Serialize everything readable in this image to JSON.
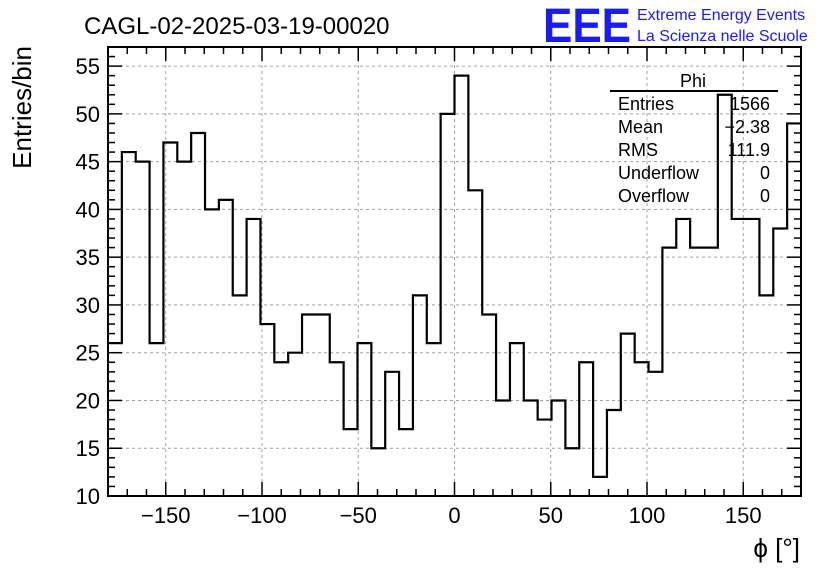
{
  "chart_data": {
    "type": "bar",
    "histogram": true,
    "title": "CAGL-02-2025-03-19-00020",
    "xlabel": "ϕ [°]",
    "ylabel": "Entries/bin",
    "xlim": [
      -180,
      180
    ],
    "ylim": [
      10,
      57
    ],
    "bin_width": 7.2,
    "x_ticks": [
      -150,
      -100,
      -50,
      0,
      50,
      100,
      150
    ],
    "x_tick_labels": [
      "−150",
      "−100",
      "−50",
      "0",
      "50",
      "100",
      "150"
    ],
    "y_ticks": [
      10,
      15,
      20,
      25,
      30,
      35,
      40,
      45,
      50,
      55
    ],
    "y_tick_labels": [
      "10",
      "15",
      "20",
      "25",
      "30",
      "35",
      "40",
      "45",
      "50",
      "55"
    ],
    "grid": true,
    "values": [
      26,
      46,
      45,
      26,
      47,
      45,
      48,
      40,
      41,
      31,
      39,
      28,
      24,
      25,
      29,
      29,
      24,
      17,
      26,
      15,
      23,
      17,
      31,
      26,
      50,
      54,
      42,
      29,
      20,
      26,
      20,
      18,
      20,
      15,
      24,
      12,
      19,
      27,
      24,
      23,
      36,
      39,
      36,
      36,
      52,
      39,
      39,
      31,
      38,
      49
    ],
    "line_color": "#000000",
    "stats": {
      "name": "Phi",
      "rows": [
        {
          "label": "Entries",
          "value": "1566"
        },
        {
          "label": "Mean",
          "value": "−2.38"
        },
        {
          "label": "RMS",
          "value": "111.9"
        },
        {
          "label": "Underflow",
          "value": "0"
        },
        {
          "label": "Overflow",
          "value": "0"
        }
      ]
    }
  },
  "logo": {
    "mark": "EEE",
    "line1": "Extreme Energy Events",
    "line2": "La Scienza nelle Scuole",
    "color": "#1a1aff"
  }
}
